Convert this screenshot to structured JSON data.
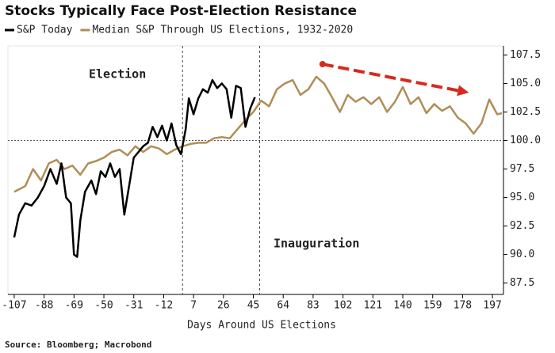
{
  "chart_data": {
    "type": "line",
    "title": "Stocks Typically Face Post-Election Resistance",
    "xlabel": "Days Around US Elections",
    "source": "Source: Bloomberg; Macrobond",
    "xlim": [
      -111,
      204
    ],
    "ylim": [
      86.5,
      108.3
    ],
    "xticks": [
      -107,
      -88,
      -69,
      -50,
      -31,
      -12,
      7,
      26,
      45,
      64,
      83,
      102,
      121,
      140,
      159,
      178,
      197
    ],
    "yticks": [
      87.5,
      {
        "value": 90,
        "label": "90.0"
      },
      92.5,
      {
        "value": 95,
        "label": "95.0"
      },
      97.5,
      {
        "value": 100,
        "label": "100.0"
      },
      102.5,
      {
        "value": 105,
        "label": "105.0"
      },
      107.5
    ],
    "hline": 100,
    "vlines": [
      0,
      49
    ],
    "annotations": [
      {
        "text": "Election"
      },
      {
        "text": "Inauguration"
      }
    ],
    "arrow": {
      "x": [
        89,
        182
      ],
      "y": [
        106.7,
        104.2
      ],
      "color": "#d62a1e"
    },
    "series": [
      {
        "name": "S&P Today",
        "color": "#000000",
        "x": [
          -107,
          -104,
          -100,
          -96,
          -92,
          -88,
          -84,
          -80,
          -77,
          -74,
          -71,
          -69,
          -67,
          -65,
          -62,
          -58,
          -55,
          -52,
          -49,
          -46,
          -43,
          -40,
          -37,
          -34,
          -31,
          -28,
          -25,
          -22,
          -19,
          -16,
          -13,
          -10,
          -7,
          -4,
          -1,
          2,
          4,
          7,
          10,
          13,
          16,
          19,
          22,
          25,
          28,
          31,
          34,
          37,
          40,
          43,
          46
        ],
        "values": [
          91.5,
          93.5,
          94.5,
          94.3,
          95,
          96,
          97.5,
          96.2,
          98,
          95,
          94.5,
          90,
          89.8,
          93,
          95.5,
          96.5,
          95.3,
          97.3,
          96.8,
          98,
          96.8,
          97.5,
          93.5,
          96,
          98.5,
          99,
          99.5,
          99.8,
          101.2,
          100.3,
          101.3,
          100,
          101.5,
          99.6,
          98.8,
          101,
          103.7,
          102.3,
          103.7,
          104.5,
          104.2,
          105.3,
          104.6,
          105,
          104.5,
          102,
          104.8,
          104.6,
          101.2,
          102.8,
          103.8
        ]
      },
      {
        "name": "Median S&P Through US Elections, 1932-2020",
        "color": "#b08d57",
        "x": [
          -107,
          -100,
          -95,
          -90,
          -85,
          -80,
          -75,
          -70,
          -65,
          -60,
          -55,
          -50,
          -45,
          -40,
          -35,
          -30,
          -25,
          -20,
          -15,
          -10,
          -5,
          0,
          5,
          10,
          15,
          20,
          25,
          30,
          35,
          40,
          45,
          50,
          55,
          60,
          65,
          70,
          75,
          80,
          85,
          90,
          95,
          100,
          105,
          110,
          115,
          120,
          125,
          130,
          135,
          140,
          145,
          150,
          155,
          160,
          165,
          170,
          175,
          180,
          185,
          190,
          195,
          200,
          203
        ],
        "values": [
          95.5,
          96,
          97.5,
          96.5,
          98,
          98.3,
          97.5,
          97.8,
          97,
          98,
          98.2,
          98.5,
          99,
          99.2,
          98.7,
          99.5,
          99,
          99.5,
          99.3,
          98.8,
          99.2,
          99.5,
          99.7,
          99.8,
          99.8,
          100.2,
          100.3,
          100.2,
          101,
          101.8,
          102.5,
          103.5,
          103,
          104.5,
          105,
          105.3,
          104,
          104.5,
          105.6,
          105,
          103.8,
          102.5,
          104,
          103.4,
          103.8,
          103.2,
          103.8,
          102.5,
          103.4,
          104.7,
          103.2,
          103.8,
          102.4,
          103.2,
          102.6,
          103,
          102,
          101.5,
          100.6,
          101.5,
          103.6,
          102.3,
          102.4
        ]
      }
    ]
  }
}
